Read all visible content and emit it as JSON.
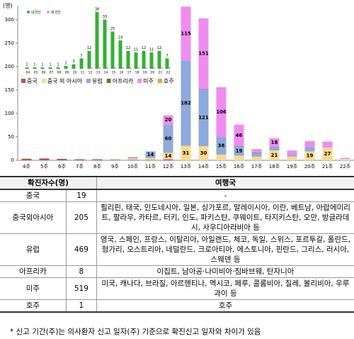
{
  "chart_data": [
    {
      "type": "bar",
      "stacked": true,
      "y_unit": "(명)",
      "categories": [
        "4주",
        "5주",
        "6주",
        "7주",
        "8주",
        "9주",
        "10주",
        "11주",
        "12주",
        "13주",
        "14주",
        "15주",
        "16주",
        "17주",
        "18주",
        "19주",
        "20주",
        "21주",
        "22주"
      ],
      "ylim": [
        0,
        330
      ],
      "yticks": [
        0,
        50,
        100,
        150,
        200,
        250,
        300
      ],
      "series": [
        {
          "name": "중국",
          "color": "#c0504d",
          "values": [
            3,
            4,
            3,
            2,
            2,
            1,
            1,
            1,
            2,
            0,
            0,
            0,
            0,
            0,
            0,
            0,
            0,
            0,
            0
          ]
        },
        {
          "name": "중국 외 아시아",
          "color": "#fcd98c",
          "values": [
            1,
            0,
            0,
            1,
            1,
            2,
            3,
            4,
            14,
            31,
            30,
            12,
            10,
            8,
            21,
            8,
            19,
            27,
            3
          ]
        },
        {
          "name": "유럽",
          "color": "#8eaadb",
          "values": [
            0,
            0,
            0,
            0,
            0,
            0,
            3,
            14,
            60,
            182,
            121,
            38,
            19,
            7,
            8,
            4,
            9,
            0,
            0
          ]
        },
        {
          "name": "아프리카",
          "color": "#548235",
          "values": [
            0,
            0,
            0,
            0,
            0,
            0,
            0,
            0,
            0,
            0,
            1,
            0,
            1,
            1,
            0,
            0,
            0,
            0,
            0
          ]
        },
        {
          "name": "미주",
          "color": "#f08cf0",
          "values": [
            0,
            0,
            0,
            0,
            0,
            0,
            0,
            0,
            20,
            115,
            151,
            106,
            46,
            7,
            18,
            9,
            13,
            13,
            2
          ]
        },
        {
          "name": "호주",
          "color": "#f79646",
          "values": [
            0,
            0,
            0,
            0,
            0,
            0,
            0,
            0,
            0,
            0,
            0,
            0,
            0,
            1,
            0,
            0,
            0,
            0,
            0
          ]
        }
      ]
    },
    {
      "type": "inset-bar",
      "categories": [
        "04",
        "05",
        "06",
        "07",
        "08",
        "09",
        "10",
        "11",
        "12",
        "13",
        "14",
        "15",
        "16",
        "17",
        "18",
        "19",
        "20",
        "21",
        "22"
      ],
      "series": [
        {
          "name": "내국인",
          "color": "#33b233",
          "values": [
            1,
            1,
            1,
            1,
            1,
            2,
            3,
            7,
            12,
            38,
            33,
            25,
            19,
            12,
            11,
            12,
            11,
            12,
            7
          ]
        },
        {
          "name": "외국인",
          "color": "#f08cf0",
          "values": [
            0,
            0,
            0,
            0,
            0,
            0,
            0,
            0,
            1,
            1,
            1,
            1,
            1,
            1,
            1,
            1,
            1,
            1,
            1
          ]
        }
      ]
    }
  ],
  "table": {
    "header": [
      "확진자수(명)",
      "여행국"
    ],
    "rows": [
      [
        "중국",
        19,
        "-"
      ],
      [
        "중국외아시아",
        205,
        "필리핀, 태국, 인도네시아, 일본, 싱가포르, 말레이시아, 이란, 베트남, 아랍에미리트, 팔라우, 카타르, 터키, 인도, 파키스탄, 쿠웨이트, 타지키스탄, 오만, 방글라데시, 사우디아라비아 등"
      ],
      [
        "유럽",
        469,
        "영국, 스페인, 프랑스, 이탈리아, 아일랜드, 체코, 독일, 스위스, 포르투갈, 폴란드, 헝가리, 오스트리아, 네덜란드, 크로아티아, 에스토니아, 핀란드, 그리스, 러시아, 스웨덴 등"
      ],
      [
        "아프리카",
        8,
        "이집트, 남아공·나미비아·짐바브웨, 탄자니아"
      ],
      [
        "미주",
        519,
        "미국, 캐나다, 브라질, 아르헨티나, 멕시코, 페루, 콜롬비아, 칠레, 볼리비아, 우루과이 등"
      ],
      [
        "호주",
        1,
        "호주"
      ]
    ]
  },
  "footnote": "* 신고 기간(주)는 의사환자 신고 일자(주) 기준으로 확진신고 일자와 차이가 있음"
}
